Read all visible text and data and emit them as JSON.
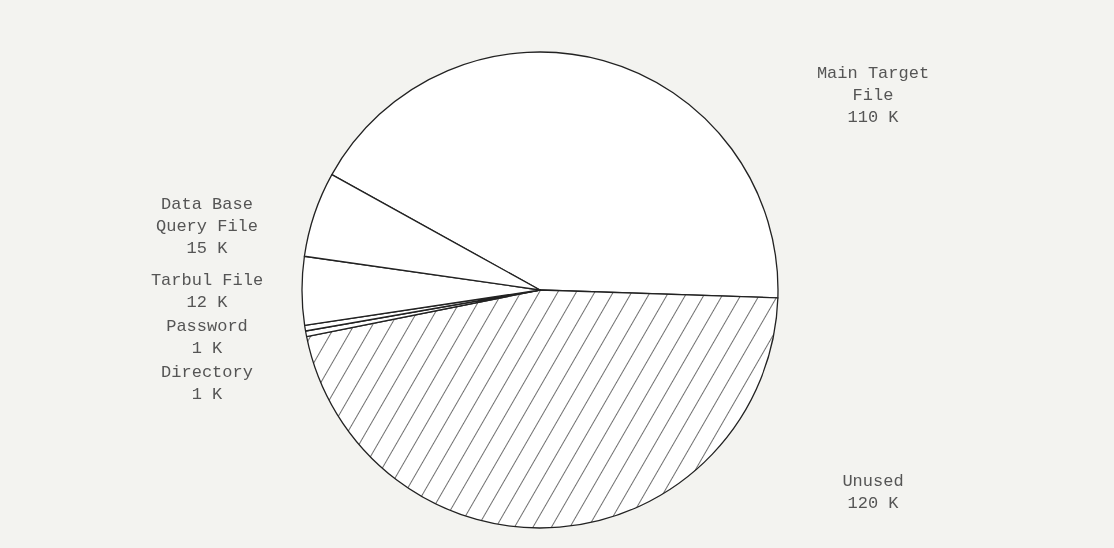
{
  "chart_data": {
    "type": "pie",
    "categories": [
      "Main Target File",
      "Unused",
      "Directory",
      "Password",
      "Tarbul File",
      "Data Base Query File"
    ],
    "values": [
      110,
      120,
      1,
      1,
      12,
      15
    ],
    "value_labels": [
      "110 K",
      "120 K",
      "1 K",
      "1 K",
      "12 K",
      "15 K"
    ],
    "colors": [
      "#ffffff",
      "#222222",
      "#ffffff",
      "#ffffff",
      "#ffffff",
      "#ffffff"
    ]
  }
}
